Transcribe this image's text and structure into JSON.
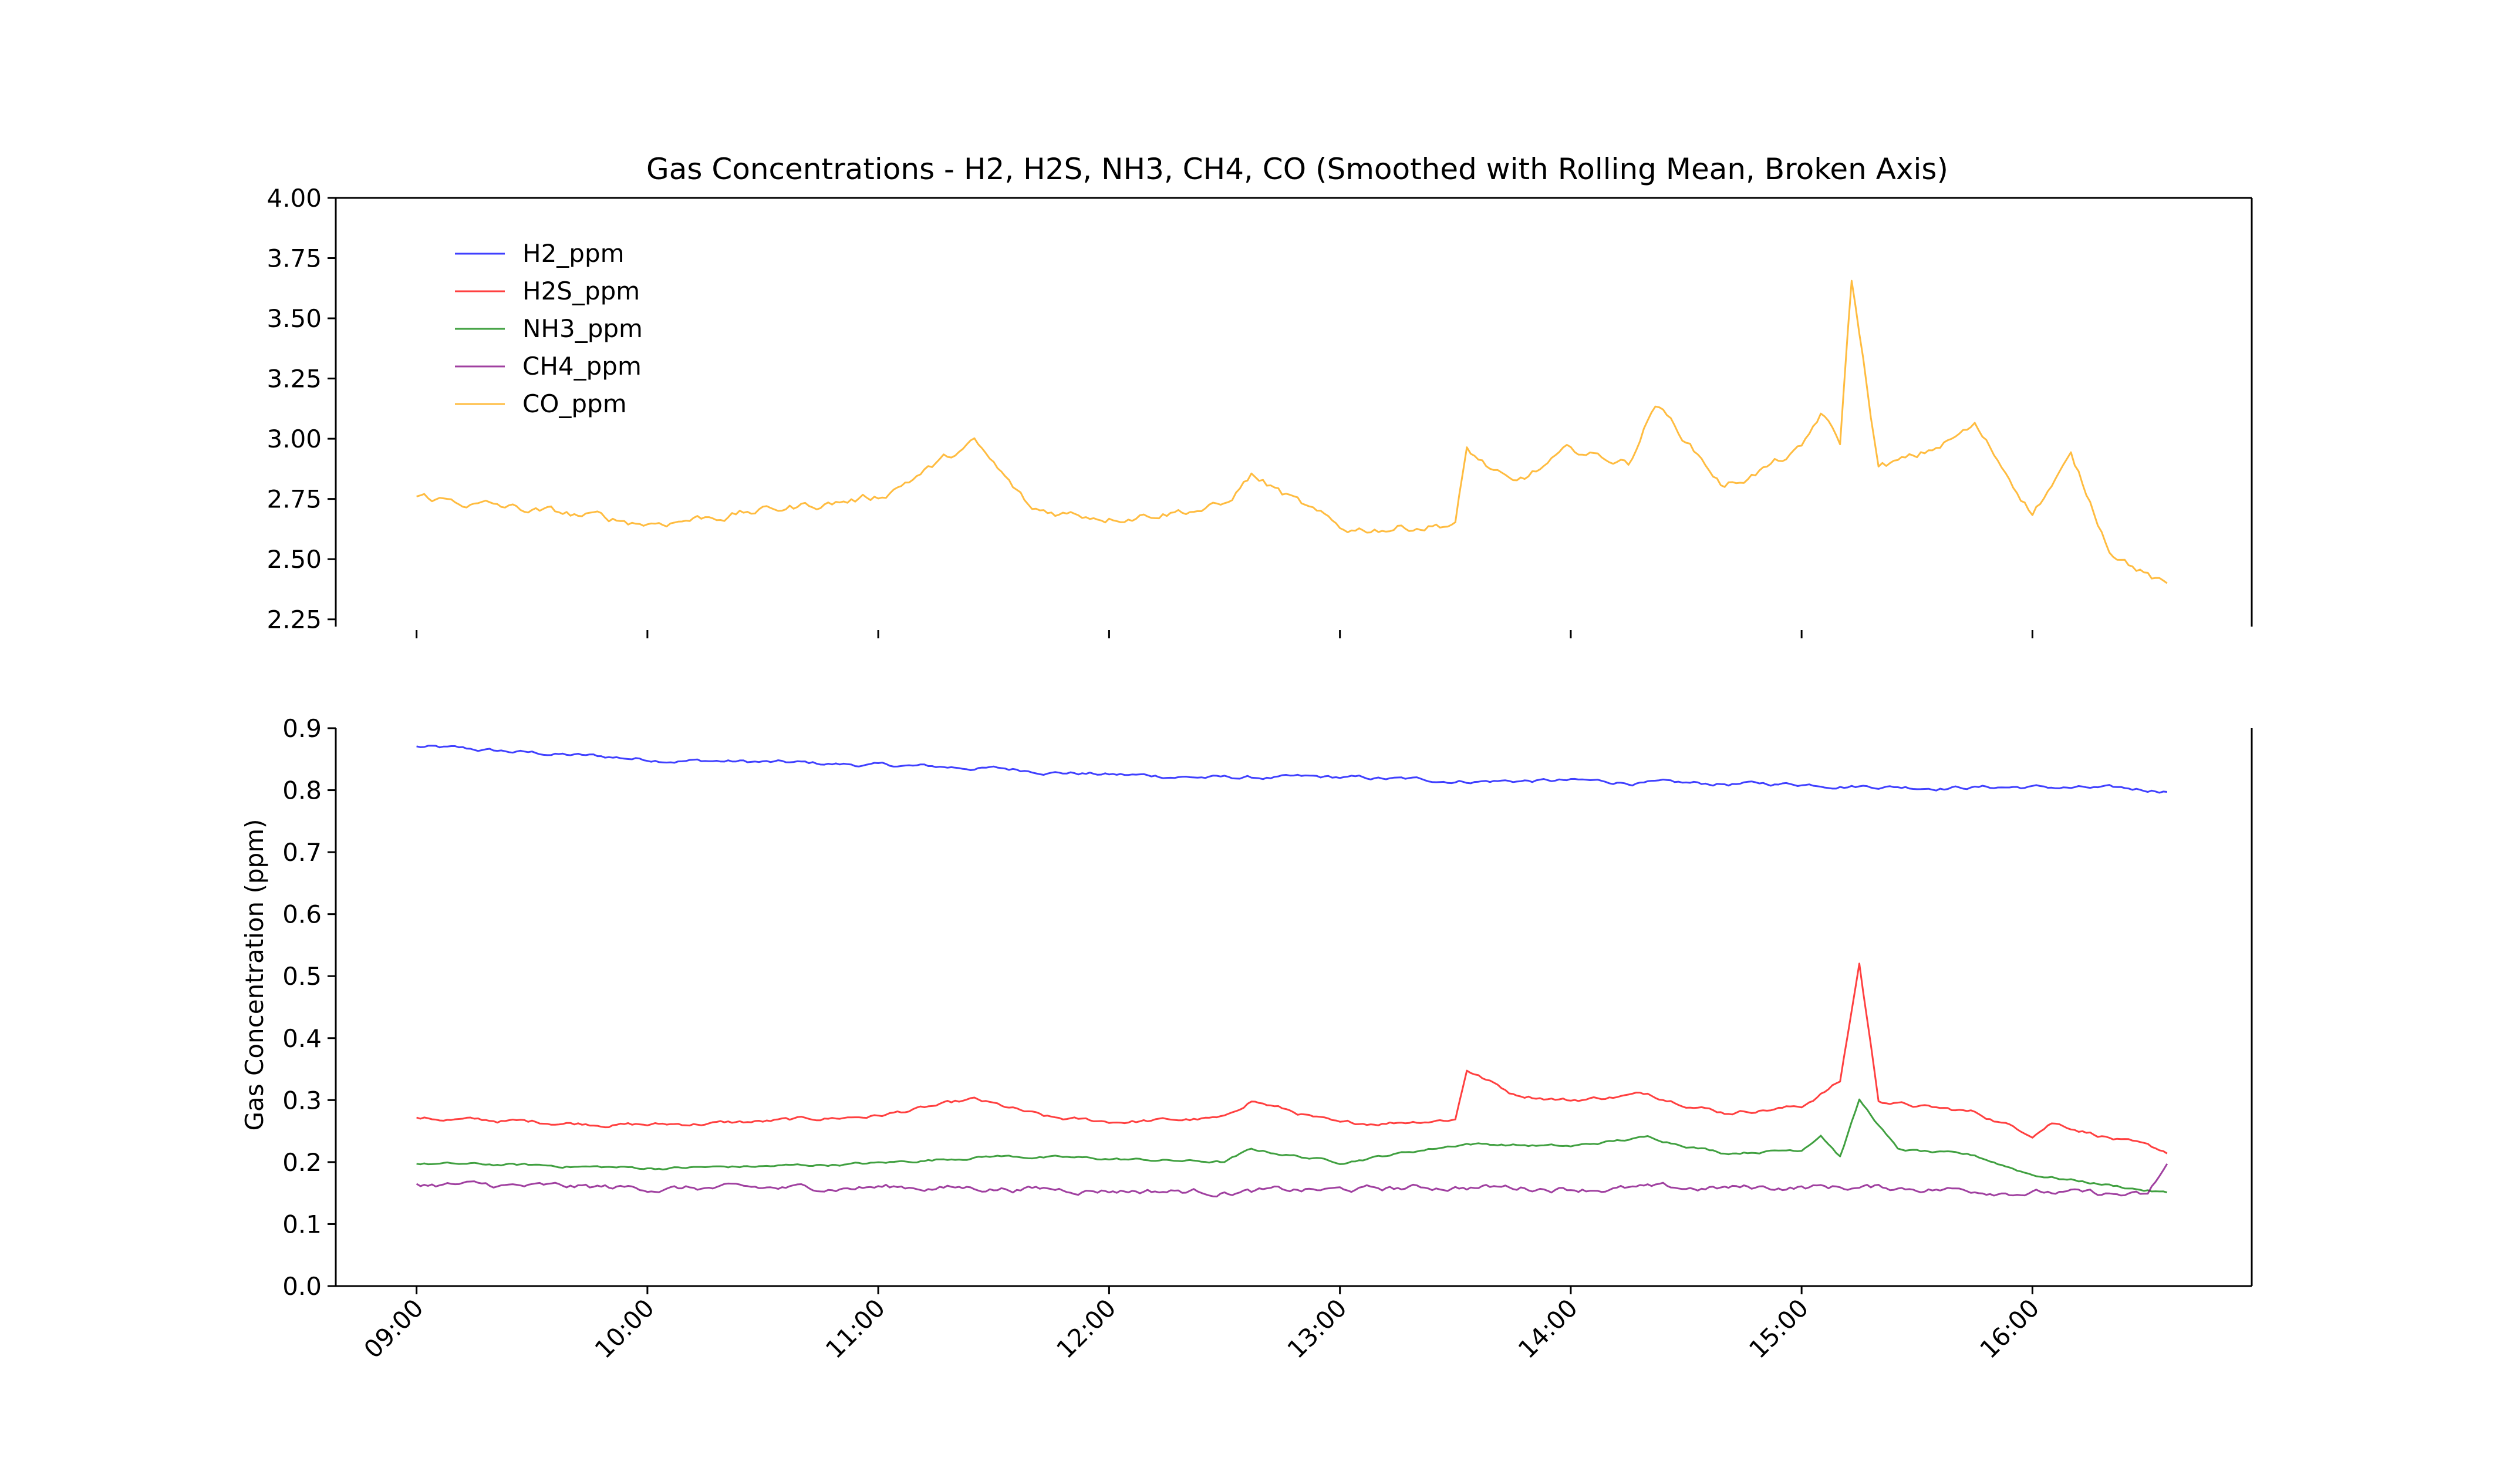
{
  "chart_data": {
    "type": "line",
    "title": "Gas Concentrations - H2, H2S, NH3, CH4, CO (Smoothed with Rolling Mean, Broken Axis)",
    "xlabel": "",
    "ylabel": "Gas Concentration (ppm)",
    "x_ticks": [
      "09:00",
      "10:00",
      "11:00",
      "12:00",
      "13:00",
      "14:00",
      "15:00",
      "16:00"
    ],
    "x_range_hours": [
      8.65,
      16.95
    ],
    "broken_axis": true,
    "legend_position": "upper left",
    "grid": false,
    "upper_panel": {
      "ylim": [
        2.22,
        4.0
      ],
      "yticks": [
        "2.25",
        "2.50",
        "2.75",
        "3.00",
        "3.25",
        "3.50",
        "3.75",
        "4.00"
      ]
    },
    "lower_panel": {
      "ylim": [
        0.0,
        0.9
      ],
      "yticks": [
        "0.0",
        "0.1",
        "0.2",
        "0.3",
        "0.4",
        "0.5",
        "0.6",
        "0.7",
        "0.8",
        "0.9"
      ]
    },
    "series": [
      {
        "name": "H2_ppm",
        "color": "#0000ff",
        "panel": "lower",
        "x": [
          "09:00",
          "09:30",
          "10:00",
          "10:30",
          "11:00",
          "11:30",
          "12:00",
          "12:30",
          "13:00",
          "13:30",
          "14:00",
          "14:30",
          "15:00",
          "15:30",
          "16:00",
          "16:35"
        ],
        "y": [
          0.87,
          0.86,
          0.85,
          0.845,
          0.84,
          0.835,
          0.825,
          0.82,
          0.82,
          0.815,
          0.815,
          0.81,
          0.81,
          0.805,
          0.805,
          0.8
        ]
      },
      {
        "name": "H2S_ppm",
        "color": "#ff0000",
        "panel": "lower",
        "x": [
          "09:00",
          "09:30",
          "10:00",
          "10:30",
          "11:00",
          "11:25",
          "11:45",
          "12:00",
          "12:30",
          "12:37",
          "13:00",
          "13:30",
          "13:33",
          "13:45",
          "14:00",
          "14:20",
          "14:40",
          "15:00",
          "15:10",
          "15:15",
          "15:20",
          "15:30",
          "15:45",
          "16:00",
          "16:05",
          "16:35"
        ],
        "y": [
          0.27,
          0.265,
          0.26,
          0.265,
          0.275,
          0.3,
          0.27,
          0.265,
          0.27,
          0.3,
          0.26,
          0.27,
          0.35,
          0.31,
          0.3,
          0.31,
          0.28,
          0.29,
          0.33,
          0.52,
          0.3,
          0.29,
          0.28,
          0.245,
          0.265,
          0.215
        ]
      },
      {
        "name": "NH3_ppm",
        "color": "#008000",
        "panel": "lower",
        "x": [
          "09:00",
          "09:30",
          "10:00",
          "10:30",
          "11:00",
          "11:30",
          "12:00",
          "12:30",
          "12:37",
          "13:00",
          "13:33",
          "14:00",
          "14:20",
          "14:40",
          "15:00",
          "15:05",
          "15:10",
          "15:15",
          "15:25",
          "15:45",
          "16:00",
          "16:35"
        ],
        "y": [
          0.197,
          0.195,
          0.19,
          0.193,
          0.198,
          0.21,
          0.205,
          0.2,
          0.22,
          0.2,
          0.23,
          0.225,
          0.24,
          0.215,
          0.22,
          0.245,
          0.21,
          0.3,
          0.22,
          0.21,
          0.18,
          0.15
        ]
      },
      {
        "name": "CH4_ppm",
        "color": "#800080",
        "panel": "lower",
        "x": [
          "09:00",
          "09:30",
          "10:00",
          "10:30",
          "11:00",
          "11:30",
          "12:00",
          "12:30",
          "13:00",
          "13:30",
          "14:00",
          "14:30",
          "15:00",
          "15:30",
          "16:00",
          "16:30",
          "16:35"
        ],
        "y": [
          0.165,
          0.16,
          0.158,
          0.157,
          0.16,
          0.158,
          0.155,
          0.152,
          0.155,
          0.16,
          0.158,
          0.157,
          0.16,
          0.158,
          0.152,
          0.145,
          0.195
        ]
      },
      {
        "name": "CO_ppm",
        "color": "#ffa500",
        "panel": "upper",
        "x": [
          "09:00",
          "09:30",
          "10:00",
          "10:30",
          "11:00",
          "11:10",
          "11:25",
          "11:40",
          "12:00",
          "12:30",
          "12:37",
          "13:00",
          "13:30",
          "13:33",
          "13:45",
          "14:00",
          "14:15",
          "14:22",
          "14:40",
          "15:00",
          "15:05",
          "15:10",
          "15:13",
          "15:20",
          "15:30",
          "15:45",
          "16:00",
          "16:10",
          "16:20",
          "16:35"
        ],
        "y": [
          2.76,
          2.7,
          2.65,
          2.7,
          2.76,
          2.85,
          2.98,
          2.7,
          2.68,
          2.72,
          2.85,
          2.62,
          2.65,
          2.95,
          2.8,
          2.95,
          2.9,
          3.15,
          2.8,
          2.95,
          3.1,
          2.98,
          3.66,
          2.88,
          2.92,
          3.05,
          2.7,
          2.92,
          2.55,
          2.38
        ]
      }
    ]
  }
}
